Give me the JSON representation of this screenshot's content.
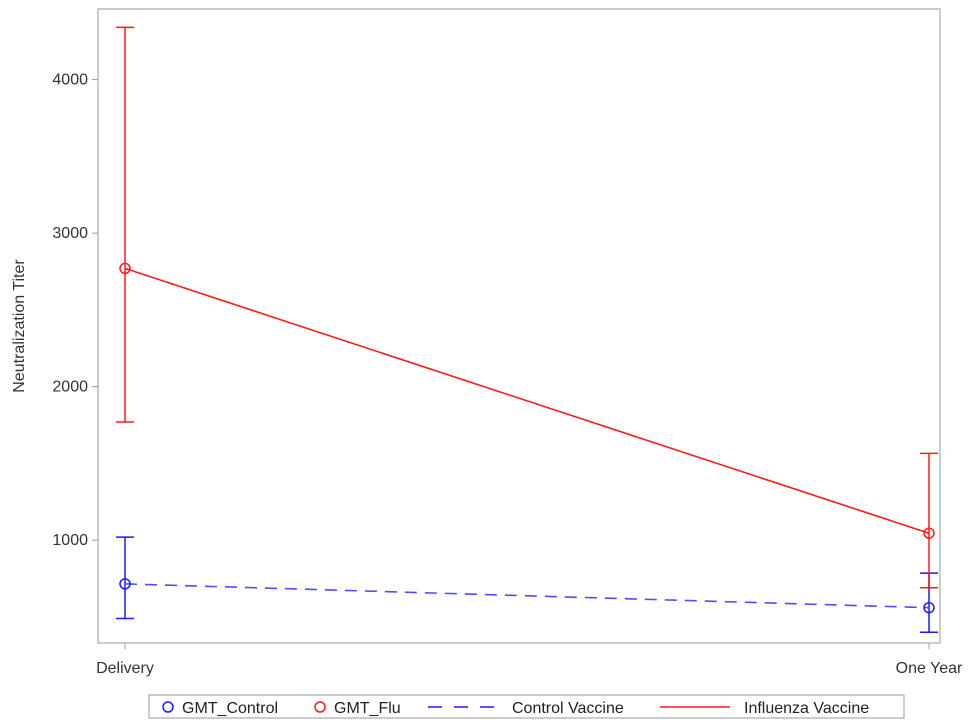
{
  "chart_data": {
    "type": "line",
    "title": "",
    "xlabel": "",
    "ylabel": "Neutralization Titer",
    "categories": [
      "Delivery",
      "One Year"
    ],
    "ylim": [
      330,
      4460
    ],
    "yticks": [
      1000,
      2000,
      3000,
      4000
    ],
    "grid": false,
    "legend_position": "bottom",
    "colors": {
      "control": "#1a1aff",
      "flu": "#ff1a1a",
      "frame": "#999999"
    },
    "series": [
      {
        "key": "flu",
        "line_name": "Influenza Vaccine",
        "marker_name": "GMT_Flu",
        "line_style": "solid",
        "values": [
          2770,
          1045
        ],
        "lower": [
          1770,
          690
        ],
        "upper": [
          4340,
          1565
        ]
      },
      {
        "key": "control",
        "line_name": "Control Vaccine",
        "marker_name": "GMT_Control",
        "line_style": "dashed",
        "values": [
          715,
          560
        ],
        "lower": [
          490,
          400
        ],
        "upper": [
          1020,
          785
        ]
      }
    ],
    "legend": [
      "GMT_Control",
      "GMT_Flu",
      "Control Vaccine",
      "Influenza Vaccine"
    ]
  }
}
